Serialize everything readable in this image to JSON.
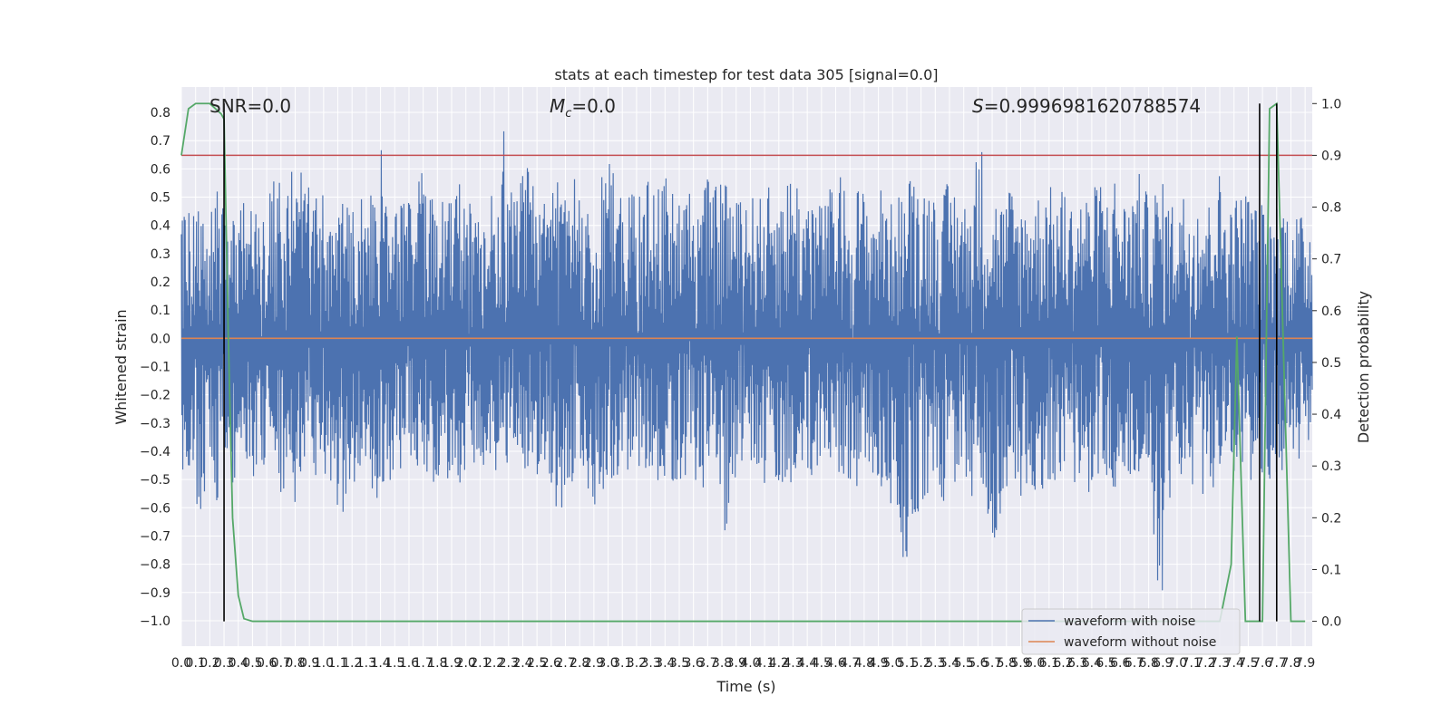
{
  "chart_data": {
    "type": "line",
    "title": "stats at each timestep for test data 305 [signal=0.0]",
    "xlabel": "Time (s)",
    "ylabel": "Whitened strain",
    "y2label": "Detection probability",
    "xlim": [
      0.0,
      7.95
    ],
    "ylim": [
      -1.09,
      0.89
    ],
    "y2lim": [
      -0.048,
      1.032
    ],
    "x_ticks": [
      "0.0",
      "0.1",
      "0.2",
      "0.3",
      "0.4",
      "0.5",
      "0.6",
      "0.7",
      "0.8",
      "0.9",
      "1.0",
      "1.1",
      "1.2",
      "1.3",
      "1.4",
      "1.5",
      "1.6",
      "1.7",
      "1.8",
      "1.9",
      "2.0",
      "2.1",
      "2.2",
      "2.3",
      "2.4",
      "2.5",
      "2.6",
      "2.7",
      "2.8",
      "2.9",
      "3.0",
      "3.1",
      "3.2",
      "3.3",
      "3.4",
      "3.5",
      "3.6",
      "3.7",
      "3.8",
      "3.9",
      "4.0",
      "4.1",
      "4.2",
      "4.3",
      "4.4",
      "4.5",
      "4.6",
      "4.7",
      "4.8",
      "4.9",
      "5.0",
      "5.1",
      "5.2",
      "5.3",
      "5.4",
      "5.5",
      "5.6",
      "5.7",
      "5.8",
      "5.9",
      "6.0",
      "6.1",
      "6.2",
      "6.3",
      "6.4",
      "6.5",
      "6.6",
      "6.7",
      "6.8",
      "6.9",
      "7.0",
      "7.1",
      "7.2",
      "7.3",
      "7.4",
      "7.5",
      "7.6",
      "7.7",
      "7.8",
      "7.9"
    ],
    "y_ticks": [
      "0.8",
      "0.7",
      "0.6",
      "0.5",
      "0.4",
      "0.3",
      "0.2",
      "0.1",
      "0.0",
      "−0.1",
      "−0.2",
      "−0.3",
      "−0.4",
      "−0.5",
      "−0.6",
      "−0.7",
      "−0.8",
      "−0.9",
      "−1.0"
    ],
    "y2_ticks": [
      "1.0",
      "0.9",
      "0.8",
      "0.7",
      "0.6",
      "0.5",
      "0.4",
      "0.3",
      "0.2",
      "0.1",
      "0.0"
    ],
    "annotations": {
      "snr": "SNR=0.0",
      "mc_symbol": "M",
      "mc_sub": "c",
      "mc_value": "=0.0",
      "s_symbol": "S",
      "s_value": "=0.9996981620788574"
    },
    "threshold": 0.9,
    "vlines_x": [
      0.3,
      7.58,
      7.7
    ],
    "series": [
      {
        "name": "waveform with noise",
        "axis": "left",
        "color": "#4c72b0",
        "envelope_upper": [
          0.46,
          0.43,
          0.52,
          0.44,
          0.41,
          0.47,
          0.53,
          0.48,
          0.45,
          0.42,
          0.58,
          0.44,
          0.47,
          0.5,
          0.45,
          0.55,
          0.6,
          0.46,
          0.61,
          0.55,
          0.61,
          0.54,
          0.52,
          0.49,
          0.63,
          0.53,
          0.47,
          0.5,
          0.44,
          0.49,
          0.51,
          0.48,
          0.59,
          0.71,
          0.52,
          0.44,
          0.47,
          0.51,
          0.53,
          0.55,
          0.6,
          0.67,
          0.52,
          0.5,
          0.51,
          0.48,
          0.55,
          0.46,
          0.49,
          0.42,
          0.45,
          0.5,
          0.54,
          0.81,
          0.58,
          0.5,
          0.56,
          0.62,
          0.55,
          0.51,
          0.48,
          0.5,
          0.62,
          0.52,
          0.47,
          0.58,
          0.55,
          0.52,
          0.49,
          0.6,
          0.56,
          0.64,
          0.51,
          0.55,
          0.5,
          0.53,
          0.5,
          0.57,
          0.54,
          0.53,
          0.68,
          0.55,
          0.59,
          0.51,
          0.54,
          0.49,
          0.5,
          0.57,
          0.53,
          0.55,
          0.61,
          0.52,
          0.48,
          0.55,
          0.5,
          0.52,
          0.5,
          0.53,
          0.59,
          0.51,
          0.55,
          0.64,
          0.56,
          0.49,
          0.56,
          0.51,
          0.47,
          0.54,
          0.52,
          0.58,
          0.52,
          0.49,
          0.56,
          0.52,
          0.47,
          0.51,
          0.55,
          0.47,
          0.5,
          0.52,
          0.55,
          0.62,
          0.58,
          0.56,
          0.54,
          0.49,
          0.52,
          0.57,
          0.55,
          0.51,
          0.47,
          0.56,
          0.78,
          0.52,
          0.49,
          0.53,
          0.48,
          0.55,
          0.51,
          0.47,
          0.52,
          0.5,
          0.53,
          0.57,
          0.53,
          0.51,
          0.55,
          0.49,
          0.47,
          0.54,
          0.51,
          0.54,
          0.58,
          0.5,
          0.6,
          0.55,
          0.49,
          0.52,
          0.61,
          0.55,
          0.5,
          0.54,
          0.57,
          0.51,
          0.49,
          0.55,
          0.52,
          0.49,
          0.54,
          0.51,
          0.49,
          0.68,
          0.55,
          0.48,
          0.5,
          0.52,
          0.54,
          0.5,
          0.46,
          0.5,
          0.44,
          0.49,
          0.51,
          0.46,
          0.45,
          0.44,
          0.42,
          0.44
        ],
        "envelope_lower": [
          -0.49,
          -0.46,
          -0.5,
          -0.66,
          -0.53,
          -0.48,
          -0.6,
          -0.45,
          -0.5,
          -0.58,
          -0.4,
          -0.45,
          -0.5,
          -0.55,
          -0.43,
          -0.46,
          -0.52,
          -0.6,
          -0.55,
          -0.64,
          -0.5,
          -0.47,
          -0.52,
          -0.45,
          -0.58,
          -0.55,
          -0.6,
          -0.74,
          -0.55,
          -0.5,
          -0.48,
          -0.53,
          -0.57,
          -0.62,
          -0.52,
          -0.49,
          -0.45,
          -0.56,
          -0.48,
          -0.5,
          -0.55,
          -0.58,
          -0.51,
          -0.46,
          -0.6,
          -0.49,
          -0.52,
          -0.55,
          -0.5,
          -0.53,
          -0.48,
          -0.45,
          -0.5,
          -0.4,
          -0.47,
          -0.44,
          -0.5,
          -0.48,
          -0.45,
          -0.56,
          -0.5,
          -0.53,
          -0.6,
          -0.63,
          -0.52,
          -0.55,
          -0.58,
          -0.5,
          -0.62,
          -0.55,
          -0.6,
          -0.49,
          -0.52,
          -0.5,
          -0.55,
          -0.58,
          -0.5,
          -0.46,
          -0.53,
          -0.5,
          -0.58,
          -0.55,
          -0.52,
          -0.5,
          -0.49,
          -0.54,
          -0.6,
          -0.51,
          -0.56,
          -0.53,
          -0.73,
          -0.55,
          -0.5,
          -0.52,
          -0.48,
          -0.5,
          -0.53,
          -0.55,
          -0.5,
          -0.52,
          -0.56,
          -0.5,
          -0.48,
          -0.52,
          -0.55,
          -0.5,
          -0.47,
          -0.5,
          -0.54,
          -0.52,
          -0.5,
          -0.55,
          -0.53,
          -0.5,
          -0.48,
          -0.52,
          -0.56,
          -0.6,
          -0.62,
          -0.8,
          -0.83,
          -0.65,
          -0.62,
          -0.58,
          -0.55,
          -0.5,
          -0.6,
          -0.55,
          -0.52,
          -0.5,
          -0.55,
          -0.6,
          -0.53,
          -0.58,
          -0.73,
          -0.69,
          -0.55,
          -0.5,
          -0.52,
          -0.58,
          -0.5,
          -0.55,
          -0.53,
          -0.55,
          -0.5,
          -0.52,
          -0.55,
          -0.6,
          -0.5,
          -0.52,
          -0.55,
          -0.5,
          -0.53,
          -0.5,
          -0.55,
          -0.52,
          -0.5,
          -0.53,
          -0.55,
          -0.5,
          -0.53,
          -0.95,
          -0.98,
          -0.6,
          -0.55,
          -0.5,
          -0.53,
          -0.55,
          -0.5,
          -0.6,
          -0.55,
          -0.52,
          -0.5,
          -0.58,
          -0.53,
          -0.5,
          -0.52,
          -0.55,
          -0.5,
          -0.48,
          -0.52,
          -0.5,
          -0.47,
          -0.5,
          -0.49,
          -0.45,
          -0.47,
          -0.5,
          -0.48
        ]
      },
      {
        "name": "waveform without noise",
        "axis": "left",
        "color": "#dd8452",
        "x": [
          0.0,
          7.95
        ],
        "values": [
          0.0,
          0.0
        ]
      },
      {
        "axis": "right",
        "color": "#55a868",
        "x": [
          0.0,
          0.05,
          0.1,
          0.2,
          0.28,
          0.3,
          0.33,
          0.36,
          0.4,
          0.44,
          0.5,
          7.0,
          7.2,
          7.3,
          7.38,
          7.42,
          7.48,
          7.55,
          7.6,
          7.65,
          7.7,
          7.75,
          7.8,
          7.85,
          7.9
        ],
        "values": [
          0.9,
          0.99,
          1.0,
          1.0,
          0.98,
          0.97,
          0.55,
          0.2,
          0.05,
          0.005,
          0.0,
          0.0,
          0.0,
          0.0,
          0.11,
          0.55,
          0.0,
          0.0,
          0.0,
          0.99,
          1.0,
          0.5,
          0.0,
          0.0,
          0.0
        ]
      }
    ]
  },
  "legend": {
    "with_noise": "waveform with noise",
    "without_noise": "waveform without noise"
  },
  "colors": {
    "plot_bg": "#eaeaf2",
    "grid": "#ffffff",
    "noise": "#4c72b0",
    "clean": "#dd8452",
    "prob": "#55a868",
    "threshold": "#c44e52",
    "vline": "#000000"
  }
}
